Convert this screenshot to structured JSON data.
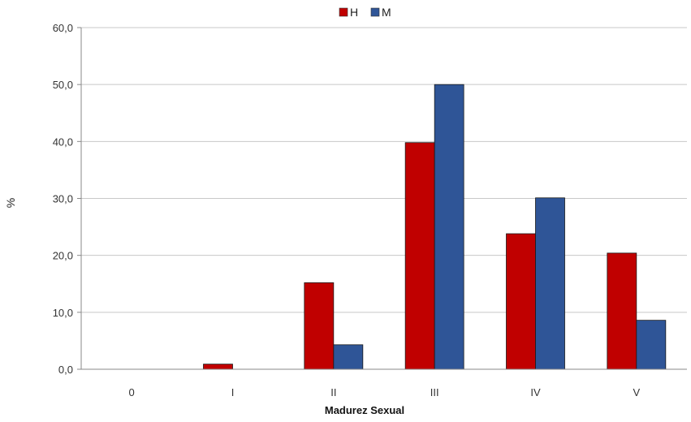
{
  "chart_data": {
    "type": "bar",
    "categories": [
      "0",
      "I",
      "II",
      "III",
      "IV",
      "V"
    ],
    "series": [
      {
        "name": "H",
        "values": [
          0.0,
          0.9,
          15.2,
          39.8,
          23.8,
          20.4
        ],
        "color": "#c00000"
      },
      {
        "name": "M",
        "values": [
          0.0,
          0.0,
          4.3,
          50.0,
          30.1,
          8.6
        ],
        "color": "#2f5597"
      }
    ],
    "xlabel": "Madurez Sexual",
    "ylabel": "%",
    "ylim": [
      0,
      60
    ],
    "yticks": [
      "0,0",
      "10,0",
      "20,0",
      "30,0",
      "40,0",
      "50,0",
      "60,0"
    ],
    "grid": true,
    "legend": "top-center"
  }
}
